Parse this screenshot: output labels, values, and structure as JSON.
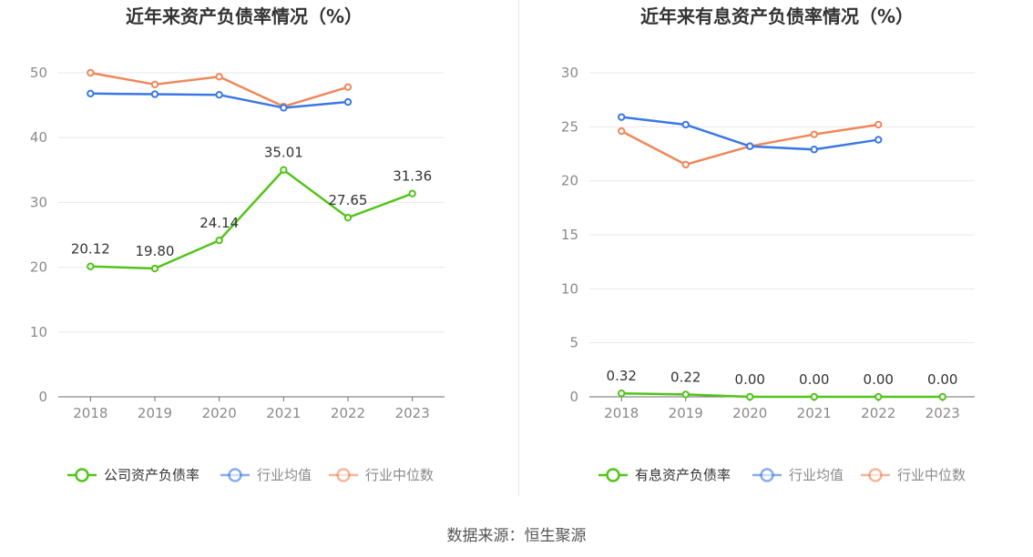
{
  "chart_data": [
    {
      "type": "line",
      "title": "近年来资产负债率情况（%）",
      "categories": [
        "2018",
        "2019",
        "2020",
        "2021",
        "2022",
        "2023"
      ],
      "ylim": [
        0,
        50
      ],
      "yticks": [
        0,
        10,
        20,
        30,
        40,
        50
      ],
      "series": [
        {
          "name": "公司资产负债率",
          "color": "#52c41a",
          "values": [
            20.12,
            19.8,
            24.14,
            35.01,
            27.65,
            31.36
          ],
          "labels": [
            "20.12",
            "19.80",
            "24.14",
            "35.01",
            "27.65",
            "31.36"
          ]
        },
        {
          "name": "行业均值",
          "color": "#3a78e6",
          "values": [
            46.8,
            46.7,
            46.6,
            44.6,
            45.5,
            null
          ]
        },
        {
          "name": "行业中位数",
          "color": "#f0875a",
          "values": [
            50.0,
            48.2,
            49.4,
            44.8,
            47.8,
            null
          ]
        }
      ],
      "legend_position": "bottom",
      "grid": true
    },
    {
      "type": "line",
      "title": "近年来有息资产负债率情况（%）",
      "categories": [
        "2018",
        "2019",
        "2020",
        "2021",
        "2022",
        "2023"
      ],
      "ylim": [
        0,
        30
      ],
      "yticks": [
        0,
        5,
        10,
        15,
        20,
        25,
        30
      ],
      "series": [
        {
          "name": "有息资产负债率",
          "color": "#52c41a",
          "values": [
            0.32,
            0.22,
            0.0,
            0.0,
            0.0,
            0.0
          ],
          "labels": [
            "0.32",
            "0.22",
            "0.00",
            "0.00",
            "0.00",
            "0.00"
          ]
        },
        {
          "name": "行业均值",
          "color": "#3a78e6",
          "values": [
            25.9,
            25.2,
            23.2,
            22.9,
            23.8,
            null
          ]
        },
        {
          "name": "行业中位数",
          "color": "#f0875a",
          "values": [
            24.6,
            21.5,
            23.2,
            24.3,
            25.2,
            null
          ]
        }
      ],
      "legend_position": "bottom",
      "grid": true
    }
  ],
  "source_text": "数据来源：恒生聚源"
}
